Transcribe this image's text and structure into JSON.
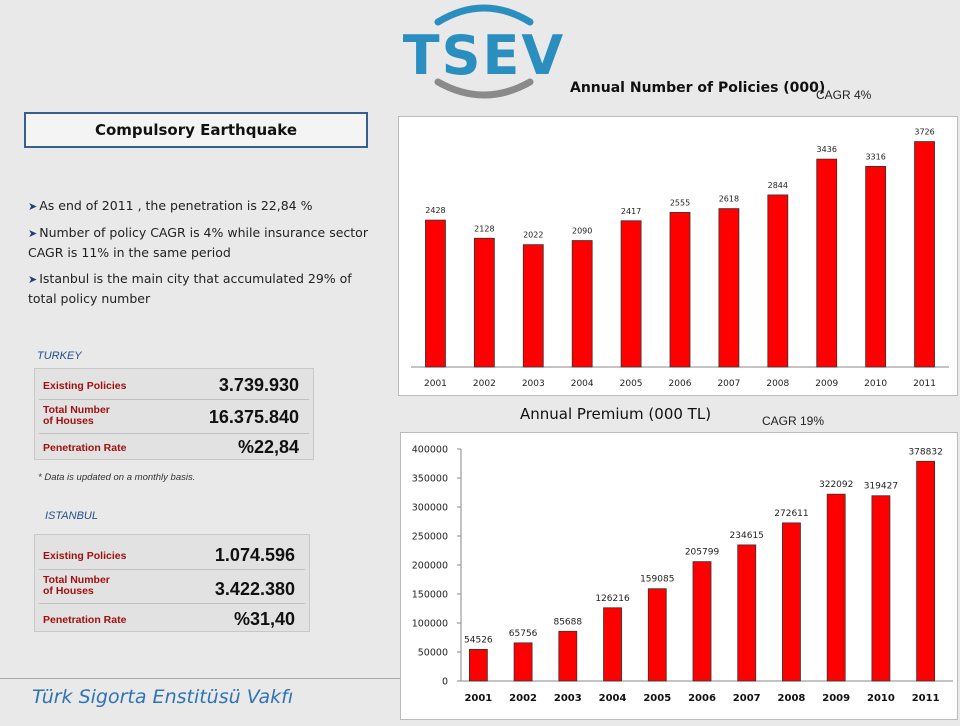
{
  "logo": {
    "text": "TSEV"
  },
  "topic_box": {
    "title": "Compulsory  Earthquake"
  },
  "bullets": [
    "As end of 2011 , the penetration is 22,84 %",
    "Number of policy CAGR is 4%  while insurance sector CAGR is 11% in the same period",
    "Istanbul is the main city that accumulated 29% of total policy number"
  ],
  "turkey": {
    "label": "TURKEY",
    "rows": [
      {
        "name": "Existing Policies",
        "value": "3.739.930"
      },
      {
        "name": "Total Number of Houses",
        "value": "16.375.840"
      },
      {
        "name": "Penetration Rate",
        "value": "%22,84"
      }
    ],
    "footnote": "* Data is updated on a monthly basis."
  },
  "istanbul": {
    "label": "ISTANBUL",
    "rows": [
      {
        "name": "Existing Policies",
        "value": "1.074.596"
      },
      {
        "name": "Total Number of Houses",
        "value": "3.422.380"
      },
      {
        "name": "Penetration Rate",
        "value": "%31,40"
      }
    ]
  },
  "footer": {
    "text": "Türk Sigorta Enstitüsü Vakfı"
  },
  "colors": {
    "bar": "#ff0000",
    "accent_blue": "#2e74b5",
    "box_border": "#365f91"
  },
  "chart_data": [
    {
      "type": "bar",
      "title": "Annual Number of Policies (000)",
      "annotation": "CAGR 4%",
      "categories": [
        "2001",
        "2002",
        "2003",
        "2004",
        "2005",
        "2006",
        "2007",
        "2008",
        "2009",
        "2010",
        "2011"
      ],
      "values": [
        2428,
        2128,
        2022,
        2090,
        2417,
        2555,
        2618,
        2844,
        3436,
        3316,
        3726
      ],
      "ylim": [
        0,
        4000
      ],
      "grid": false,
      "yaxis_visible": false
    },
    {
      "type": "bar",
      "title": "Annual Premium (000 TL)",
      "annotation": "CAGR 19%",
      "categories": [
        "2001",
        "2002",
        "2003",
        "2004",
        "2005",
        "2006",
        "2007",
        "2008",
        "2009",
        "2010",
        "2011"
      ],
      "values": [
        54526,
        65756,
        85688,
        126216,
        159085,
        205799,
        234615,
        272611,
        322092,
        319427,
        378832
      ],
      "yticks": [
        "0",
        "50000",
        "100000",
        "150000",
        "200000",
        "250000",
        "300000",
        "350000",
        "400000"
      ],
      "ylim": [
        0,
        400000
      ],
      "grid": false
    }
  ]
}
